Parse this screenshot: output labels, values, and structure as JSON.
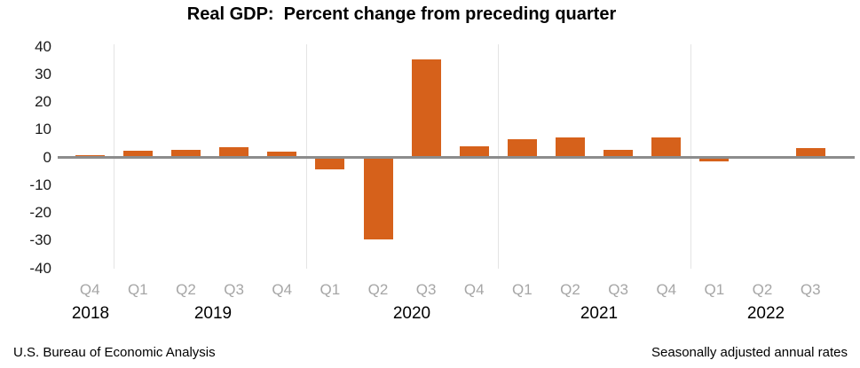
{
  "title": "Real GDP:  Percent change from preceding quarter",
  "footer": {
    "left": "U.S. Bureau of Economic Analysis",
    "right": "Seasonally adjusted annual rates"
  },
  "chart_data": {
    "type": "bar",
    "title": "Real GDP:  Percent change from preceding quarter",
    "units": "percent change, seasonally adjusted annual rate",
    "categories": [
      "Q4",
      "Q1",
      "Q2",
      "Q3",
      "Q4",
      "Q1",
      "Q2",
      "Q3",
      "Q4",
      "Q1",
      "Q2",
      "Q3",
      "Q4",
      "Q1",
      "Q2",
      "Q3"
    ],
    "values": [
      0.7,
      2.2,
      2.7,
      3.6,
      1.8,
      -4.6,
      -29.9,
      35.3,
      3.9,
      6.3,
      7.0,
      2.7,
      7.0,
      -1.6,
      -0.6,
      3.2
    ],
    "year_groups": [
      {
        "year": "2018",
        "count": 1
      },
      {
        "year": "2019",
        "count": 4
      },
      {
        "year": "2020",
        "count": 4
      },
      {
        "year": "2021",
        "count": 4
      },
      {
        "year": "2022",
        "count": 3
      }
    ],
    "y_ticks": [
      40,
      30,
      20,
      10,
      0,
      -10,
      -20,
      -30,
      -40
    ],
    "ylim": [
      -40,
      40
    ],
    "xlabel": "",
    "ylabel": "",
    "legend": "none",
    "grid": "vertical-year-separators-only",
    "bar_color": "#d6611b",
    "quarter_label_color": "#a6a6a6",
    "zero_line_color": "#8c8c8c",
    "grid_color": "#e4e4e4",
    "year_label_x": [
      102,
      240,
      464,
      675,
      863
    ]
  }
}
